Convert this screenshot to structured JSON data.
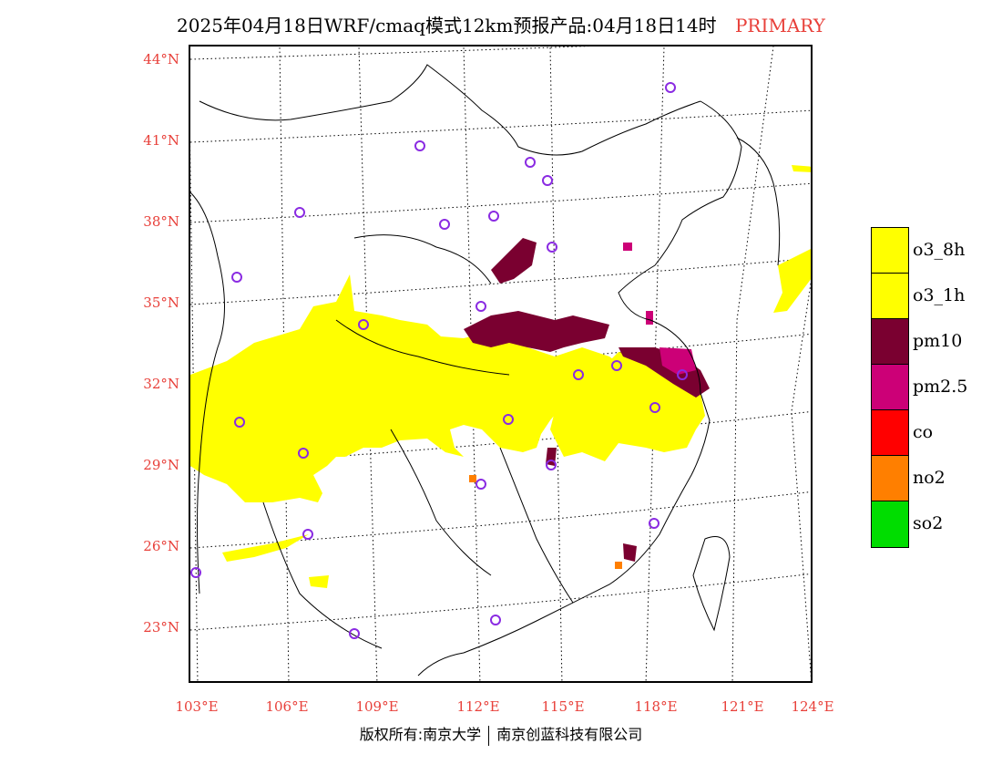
{
  "title": {
    "main": "2025年04月18日WRF/cmaq模式12km预报产品:04月18日14时",
    "tag": "PRIMARY"
  },
  "axes": {
    "lat_labels": [
      "44°N",
      "41°N",
      "38°N",
      "35°N",
      "32°N",
      "29°N",
      "26°N",
      "23°N"
    ],
    "lon_labels": [
      "103°E",
      "106°E",
      "109°E",
      "112°E",
      "115°E",
      "118°E",
      "121°E",
      "124°E"
    ]
  },
  "legend": {
    "items": [
      {
        "label": "o3_8h",
        "color": "#ffff00"
      },
      {
        "label": "o3_1h",
        "color": "#ffff00"
      },
      {
        "label": "pm10",
        "color": "#7a0030"
      },
      {
        "label": "pm2.5",
        "color": "#cc0077"
      },
      {
        "label": "co",
        "color": "#ff0000"
      },
      {
        "label": "no2",
        "color": "#ff7f00"
      },
      {
        "label": "so2",
        "color": "#00dd00"
      }
    ]
  },
  "colors": {
    "station_marker": "#8a2be2",
    "axis_label": "#e8403a",
    "graticule": "#000000"
  },
  "footer": {
    "left": "版权所有:南京大学",
    "right": "南京创蓝科技有限公司"
  }
}
